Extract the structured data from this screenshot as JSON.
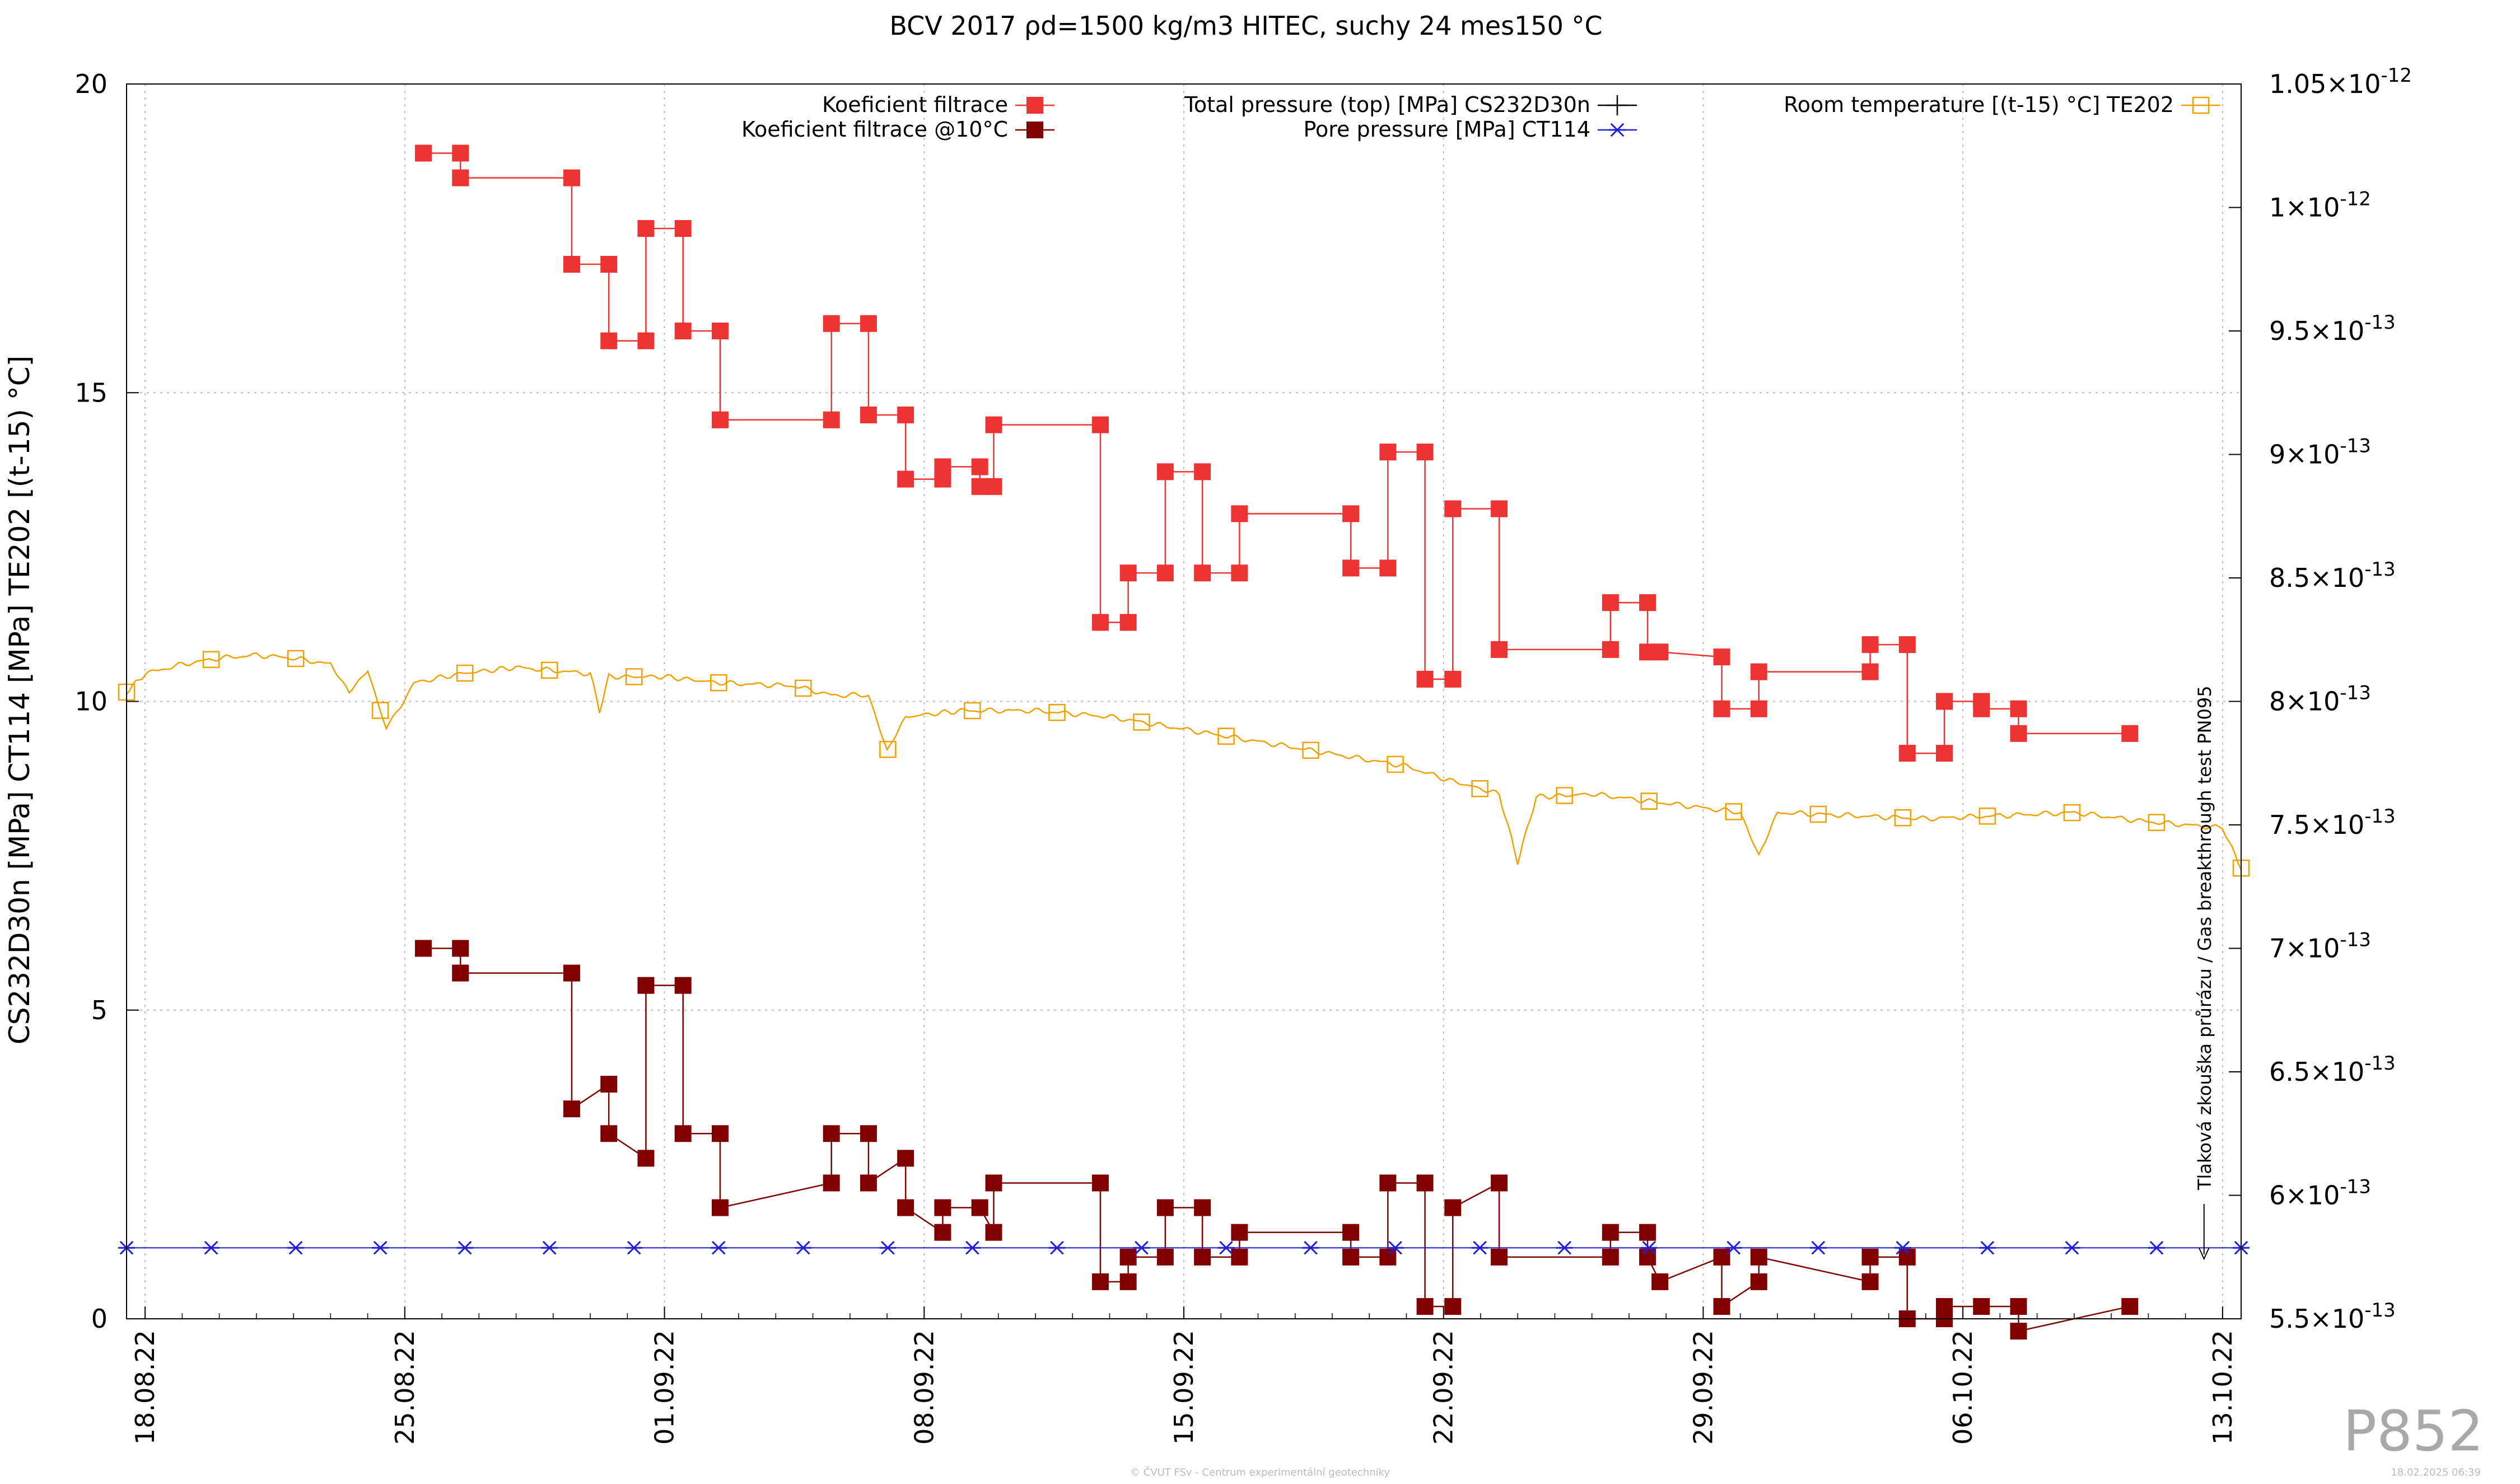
{
  "chart_data": {
    "type": "line",
    "title": "BCV 2017 ρd=1500 kg/m3 HITEC, suchy 24 mes150 °C",
    "ylabel": "CS232D30n [MPa] CT114 [MPa] TE202 [(t-15) °C]",
    "ylim": [
      0,
      20
    ],
    "y_ticks": [
      "0",
      "5",
      "10",
      "15",
      "20"
    ],
    "y2lim": [
      5.5e-13,
      1.05e-12
    ],
    "y2_ticks": [
      {
        "mant": "5.5×10",
        "exp": "-13",
        "v": 5.5e-13
      },
      {
        "mant": "6×10",
        "exp": "-13",
        "v": 6e-13
      },
      {
        "mant": "6.5×10",
        "exp": "-13",
        "v": 6.5e-13
      },
      {
        "mant": "7×10",
        "exp": "-13",
        "v": 7e-13
      },
      {
        "mant": "7.5×10",
        "exp": "-13",
        "v": 7.5e-13
      },
      {
        "mant": "8×10",
        "exp": "-13",
        "v": 8e-13
      },
      {
        "mant": "8.5×10",
        "exp": "-13",
        "v": 8.5e-13
      },
      {
        "mant": "9×10",
        "exp": "-13",
        "v": 9e-13
      },
      {
        "mant": "9.5×10",
        "exp": "-13",
        "v": 9.5e-13
      },
      {
        "mant": "1×10",
        "exp": "-12",
        "v": 1e-12
      },
      {
        "mant": "1.05×10",
        "exp": "-12",
        "v": 1.05e-12
      }
    ],
    "xlim": [
      "2022-08-17T12:00",
      "2022-10-13T12:00"
    ],
    "x_ticks": [
      {
        "label": "18.08.22",
        "date": "2022-08-18"
      },
      {
        "label": "25.08.22",
        "date": "2022-08-25"
      },
      {
        "label": "01.09.22",
        "date": "2022-09-01"
      },
      {
        "label": "08.09.22",
        "date": "2022-09-08"
      },
      {
        "label": "15.09.22",
        "date": "2022-09-15"
      },
      {
        "label": "22.09.22",
        "date": "2022-09-22"
      },
      {
        "label": "29.09.22",
        "date": "2022-09-29"
      },
      {
        "label": "06.10.22",
        "date": "2022-10-06"
      },
      {
        "label": "13.10.22",
        "date": "2022-10-13"
      }
    ],
    "grid": true,
    "legend": "top",
    "series": [
      {
        "name": "Koeficient filtrace",
        "axis": "y2",
        "color": "#ee3333",
        "marker": "filled-square",
        "points": [
          [
            "2022-08-25T12:00",
            1.022e-12
          ],
          [
            "2022-08-26T12:00",
            1.022e-12
          ],
          [
            "2022-08-26T12:00",
            1.012e-12
          ],
          [
            "2022-08-29T12:00",
            1.012e-12
          ],
          [
            "2022-08-29T12:00",
            9.77e-13
          ],
          [
            "2022-08-30T12:00",
            9.77e-13
          ],
          [
            "2022-08-30T12:00",
            9.46e-13
          ],
          [
            "2022-08-31T12:00",
            9.46e-13
          ],
          [
            "2022-08-31T12:00",
            9.915e-13
          ],
          [
            "2022-09-01T12:00",
            9.915e-13
          ],
          [
            "2022-09-01T12:00",
            9.5e-13
          ],
          [
            "2022-09-02T12:00",
            9.5e-13
          ],
          [
            "2022-09-02T12:00",
            9.14e-13
          ],
          [
            "2022-09-05T12:00",
            9.14e-13
          ],
          [
            "2022-09-05T12:00",
            9.53e-13
          ],
          [
            "2022-09-06T12:00",
            9.53e-13
          ],
          [
            "2022-09-06T12:00",
            9.16e-13
          ],
          [
            "2022-09-07T12:00",
            9.16e-13
          ],
          [
            "2022-09-07T12:00",
            8.9e-13
          ],
          [
            "2022-09-08T12:00",
            8.9e-13
          ],
          [
            "2022-09-08T12:00",
            8.95e-13
          ],
          [
            "2022-09-09T12:00",
            8.95e-13
          ],
          [
            "2022-09-09T12:00",
            8.87e-13
          ],
          [
            "2022-09-09T21:00",
            8.87e-13
          ],
          [
            "2022-09-09T21:00",
            9.12e-13
          ],
          [
            "2022-09-12T18:00",
            9.12e-13
          ],
          [
            "2022-09-12T18:00",
            8.32e-13
          ],
          [
            "2022-09-13T12:00",
            8.32e-13
          ],
          [
            "2022-09-13T12:00",
            8.52e-13
          ],
          [
            "2022-09-14T12:00",
            8.52e-13
          ],
          [
            "2022-09-14T12:00",
            8.93e-13
          ],
          [
            "2022-09-15T12:00",
            8.93e-13
          ],
          [
            "2022-09-15T12:00",
            8.52e-13
          ],
          [
            "2022-09-16T12:00",
            8.52e-13
          ],
          [
            "2022-09-16T12:00",
            8.76e-13
          ],
          [
            "2022-09-19T12:00",
            8.76e-13
          ],
          [
            "2022-09-19T12:00",
            8.54e-13
          ],
          [
            "2022-09-20T12:00",
            8.54e-13
          ],
          [
            "2022-09-20T12:00",
            9.01e-13
          ],
          [
            "2022-09-21T12:00",
            9.01e-13
          ],
          [
            "2022-09-21T12:00",
            8.09e-13
          ],
          [
            "2022-09-22T06:00",
            8.09e-13
          ],
          [
            "2022-09-22T06:00",
            8.78e-13
          ],
          [
            "2022-09-23T12:00",
            8.78e-13
          ],
          [
            "2022-09-23T12:00",
            8.21e-13
          ],
          [
            "2022-09-26T12:00",
            8.21e-13
          ],
          [
            "2022-09-26T12:00",
            8.4e-13
          ],
          [
            "2022-09-27T12:00",
            8.4e-13
          ],
          [
            "2022-09-27T12:00",
            8.2e-13
          ],
          [
            "2022-09-27T20:00",
            8.2e-13
          ],
          [
            "2022-09-29T12:00",
            8.18e-13
          ],
          [
            "2022-09-29T12:00",
            7.97e-13
          ],
          [
            "2022-09-30T12:00",
            7.97e-13
          ],
          [
            "2022-09-30T12:00",
            8.12e-13
          ],
          [
            "2022-10-03T12:00",
            8.12e-13
          ],
          [
            "2022-10-03T12:00",
            8.23e-13
          ],
          [
            "2022-10-04T12:00",
            8.23e-13
          ],
          [
            "2022-10-04T12:00",
            7.79e-13
          ],
          [
            "2022-10-05T12:00",
            7.79e-13
          ],
          [
            "2022-10-05T12:00",
            8e-13
          ],
          [
            "2022-10-06T12:00",
            8e-13
          ],
          [
            "2022-10-06T12:00",
            7.97e-13
          ],
          [
            "2022-10-07T12:00",
            7.97e-13
          ],
          [
            "2022-10-07T12:00",
            7.87e-13
          ],
          [
            "2022-10-10T12:00",
            7.87e-13
          ]
        ]
      },
      {
        "name": "Koeficient filtrace @10°C",
        "axis": "y2",
        "color": "#800000",
        "marker": "filled-square",
        "points": [
          [
            "2022-08-25T12:00",
            7e-13
          ],
          [
            "2022-08-26T12:00",
            7e-13
          ],
          [
            "2022-08-26T12:00",
            6.9e-13
          ],
          [
            "2022-08-29T12:00",
            6.9e-13
          ],
          [
            "2022-08-29T12:00",
            6.35e-13
          ],
          [
            "2022-08-30T12:00",
            6.45e-13
          ],
          [
            "2022-08-30T12:00",
            6.25e-13
          ],
          [
            "2022-08-31T12:00",
            6.15e-13
          ],
          [
            "2022-08-31T12:00",
            6.85e-13
          ],
          [
            "2022-09-01T12:00",
            6.85e-13
          ],
          [
            "2022-09-01T12:00",
            6.25e-13
          ],
          [
            "2022-09-02T12:00",
            6.25e-13
          ],
          [
            "2022-09-02T12:00",
            5.95e-13
          ],
          [
            "2022-09-05T12:00",
            6.05e-13
          ],
          [
            "2022-09-05T12:00",
            6.25e-13
          ],
          [
            "2022-09-06T12:00",
            6.25e-13
          ],
          [
            "2022-09-06T12:00",
            6.05e-13
          ],
          [
            "2022-09-07T12:00",
            6.15e-13
          ],
          [
            "2022-09-07T12:00",
            5.95e-13
          ],
          [
            "2022-09-08T12:00",
            5.85e-13
          ],
          [
            "2022-09-08T12:00",
            5.95e-13
          ],
          [
            "2022-09-09T12:00",
            5.95e-13
          ],
          [
            "2022-09-09T21:00",
            5.85e-13
          ],
          [
            "2022-09-09T21:00",
            6.05e-13
          ],
          [
            "2022-09-12T18:00",
            6.05e-13
          ],
          [
            "2022-09-12T18:00",
            5.65e-13
          ],
          [
            "2022-09-13T12:00",
            5.65e-13
          ],
          [
            "2022-09-13T12:00",
            5.75e-13
          ],
          [
            "2022-09-14T12:00",
            5.75e-13
          ],
          [
            "2022-09-14T12:00",
            5.95e-13
          ],
          [
            "2022-09-15T12:00",
            5.95e-13
          ],
          [
            "2022-09-15T12:00",
            5.75e-13
          ],
          [
            "2022-09-16T12:00",
            5.75e-13
          ],
          [
            "2022-09-16T12:00",
            5.85e-13
          ],
          [
            "2022-09-19T12:00",
            5.85e-13
          ],
          [
            "2022-09-19T12:00",
            5.75e-13
          ],
          [
            "2022-09-20T12:00",
            5.75e-13
          ],
          [
            "2022-09-20T12:00",
            6.05e-13
          ],
          [
            "2022-09-21T12:00",
            6.05e-13
          ],
          [
            "2022-09-21T12:00",
            5.55e-13
          ],
          [
            "2022-09-22T06:00",
            5.55e-13
          ],
          [
            "2022-09-22T06:00",
            5.95e-13
          ],
          [
            "2022-09-23T12:00",
            6.05e-13
          ],
          [
            "2022-09-23T12:00",
            5.75e-13
          ],
          [
            "2022-09-26T12:00",
            5.75e-13
          ],
          [
            "2022-09-26T12:00",
            5.85e-13
          ],
          [
            "2022-09-27T12:00",
            5.85e-13
          ],
          [
            "2022-09-27T12:00",
            5.75e-13
          ],
          [
            "2022-09-27T20:00",
            5.65e-13
          ],
          [
            "2022-09-29T12:00",
            5.75e-13
          ],
          [
            "2022-09-29T12:00",
            5.55e-13
          ],
          [
            "2022-09-30T12:00",
            5.65e-13
          ],
          [
            "2022-09-30T12:00",
            5.75e-13
          ],
          [
            "2022-10-03T12:00",
            5.65e-13
          ],
          [
            "2022-10-03T12:00",
            5.75e-13
          ],
          [
            "2022-10-04T12:00",
            5.75e-13
          ],
          [
            "2022-10-04T12:00",
            5.5e-13
          ],
          [
            "2022-10-05T12:00",
            5.5e-13
          ],
          [
            "2022-10-05T12:00",
            5.55e-13
          ],
          [
            "2022-10-06T12:00",
            5.55e-13
          ],
          [
            "2022-10-07T12:00",
            5.55e-13
          ],
          [
            "2022-10-07T12:00",
            5.45e-13
          ],
          [
            "2022-10-10T12:00",
            5.55e-13
          ]
        ]
      },
      {
        "name": "Total pressure (top) [MPa] CS232D30n",
        "axis": "y1",
        "color": "#000000",
        "marker": "plus",
        "points": []
      },
      {
        "name": "Pore pressure [MPa] CT114",
        "axis": "y1",
        "color": "#1f1fdd",
        "marker": "star",
        "points": [
          [
            "2022-08-17T12:00",
            1.15
          ],
          [
            "2022-10-13T12:00",
            1.15
          ]
        ]
      },
      {
        "name": "Room temperature [(t-15) °C] TE202",
        "axis": "y1",
        "color": "#f2a000",
        "marker": "open-square",
        "points": [
          [
            "2022-08-17T12:00",
            10.15
          ],
          [
            "2022-08-18T00:00",
            10.45
          ],
          [
            "2022-08-19T00:00",
            10.6
          ],
          [
            "2022-08-20T00:00",
            10.7
          ],
          [
            "2022-08-21T00:00",
            10.75
          ],
          [
            "2022-08-22T00:00",
            10.7
          ],
          [
            "2022-08-23T00:00",
            10.6
          ],
          [
            "2022-08-23T12:00",
            10.15
          ],
          [
            "2022-08-24T00:00",
            10.5
          ],
          [
            "2022-08-24T12:00",
            9.55
          ],
          [
            "2022-08-25T06:00",
            10.3
          ],
          [
            "2022-08-26T12:00",
            10.45
          ],
          [
            "2022-08-28T00:00",
            10.55
          ],
          [
            "2022-08-30T00:00",
            10.45
          ],
          [
            "2022-08-30T06:00",
            9.85
          ],
          [
            "2022-08-30T12:00",
            10.4
          ],
          [
            "2022-09-01T00:00",
            10.4
          ],
          [
            "2022-09-02T12:00",
            10.3
          ],
          [
            "2022-09-04T12:00",
            10.25
          ],
          [
            "2022-09-05T12:00",
            10.1
          ],
          [
            "2022-09-06T12:00",
            10.1
          ],
          [
            "2022-09-07T00:00",
            9.2
          ],
          [
            "2022-09-07T12:00",
            9.75
          ],
          [
            "2022-09-09T00:00",
            9.85
          ],
          [
            "2022-09-11T00:00",
            9.85
          ],
          [
            "2022-09-13T00:00",
            9.75
          ],
          [
            "2022-09-15T00:00",
            9.55
          ],
          [
            "2022-09-17T00:00",
            9.35
          ],
          [
            "2022-09-19T00:00",
            9.15
          ],
          [
            "2022-09-21T00:00",
            8.95
          ],
          [
            "2022-09-22T00:00",
            8.75
          ],
          [
            "2022-09-23T12:00",
            8.5
          ],
          [
            "2022-09-24T00:00",
            7.4
          ],
          [
            "2022-09-24T12:00",
            8.45
          ],
          [
            "2022-09-26T00:00",
            8.5
          ],
          [
            "2022-09-28T00:00",
            8.35
          ],
          [
            "2022-09-30T00:00",
            8.2
          ],
          [
            "2022-09-30T12:00",
            7.5
          ],
          [
            "2022-10-01T00:00",
            8.2
          ],
          [
            "2022-10-03T00:00",
            8.15
          ],
          [
            "2022-10-05T00:00",
            8.1
          ],
          [
            "2022-10-07T00:00",
            8.15
          ],
          [
            "2022-10-09T00:00",
            8.2
          ],
          [
            "2022-10-11T00:00",
            8.05
          ],
          [
            "2022-10-13T00:00",
            7.95
          ],
          [
            "2022-10-13T12:00",
            7.3
          ]
        ]
      }
    ],
    "annotation": {
      "text": "Tlaková zkouška průrázu / Gas breakthrough test PN095",
      "date": "2022-10-12T12:00"
    }
  },
  "watermark": "P852",
  "footer_center": "© ČVUT FSv - Centrum experimentální geotechniky",
  "footer_right": "18.02.2025 06:39"
}
